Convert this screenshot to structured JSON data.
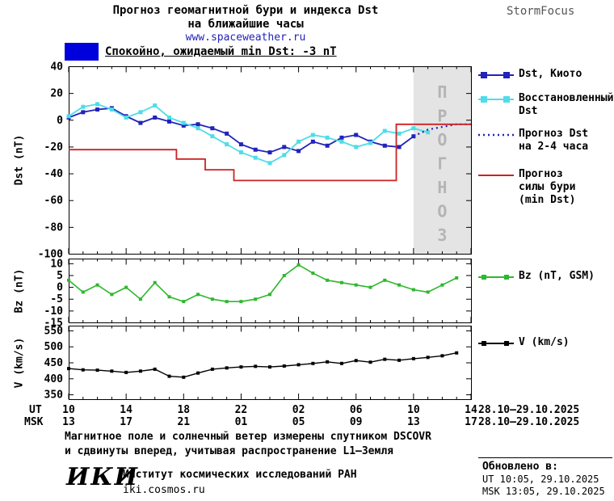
{
  "header": {
    "title_line1": "Прогноз геомагнитной бури и индекса Dst",
    "title_line2": "на ближайшие часы",
    "site": "www.spaceweather.ru",
    "brand": "StormFocus"
  },
  "status": {
    "label": "Спокойно, ожидаемый min Dst: -3 nT",
    "swatch_color": "#0000dd"
  },
  "legends": {
    "dst_kyoto": {
      "label": "Dst, Киото",
      "color": "#2222bb"
    },
    "restored": {
      "label": "Восстановленный\nDst",
      "color": "#4fdce8"
    },
    "forecast_dst": {
      "label": "Прогноз Dst\nна 2-4 часа",
      "color": "#2222bb"
    },
    "storm_force": {
      "label": "Прогноз\nсилы бури\n(min Dst)",
      "color": "#cc2222"
    },
    "bz": {
      "label": "Bz (nT, GSM)",
      "color": "#2db82d"
    },
    "v": {
      "label": "V (km/s)",
      "color": "#000000"
    }
  },
  "axis": {
    "ut_label": "UT",
    "msk_label": "MSK",
    "ut_ticks": [
      "10",
      "14",
      "18",
      "22",
      "02",
      "06",
      "10",
      "14"
    ],
    "msk_ticks": [
      "13",
      "17",
      "21",
      "01",
      "05",
      "09",
      "13",
      "17"
    ],
    "ut_daterange": "28.10–29.10.2025",
    "msk_daterange": "28.10–29.10.2025"
  },
  "footer": {
    "note_line1": "Магнитное поле и солнечный ветер измерены спутником DSCOVR",
    "note_line2": "и сдвинуты вперед, учитывая распространение L1–Земля",
    "updated_label": "Обновлено в:",
    "updated_ut": "UT  10:05, 29.10.2025",
    "updated_msk": "MSK 13:05, 29.10.2025",
    "iki_logo": "ИКИ",
    "iki_name": "Институт космических исследований РАН",
    "iki_site": "iki.cosmos.ru"
  },
  "chart_data": [
    {
      "type": "line",
      "title": "Прогноз геомагнитной бури и индекса Dst на ближайшие часы",
      "ylabel": "Dst (nT)",
      "ylim": [
        -100,
        40
      ],
      "yticks": [
        40,
        20,
        0,
        -20,
        -40,
        -60,
        -80,
        -100
      ],
      "xlim": [
        0,
        28
      ],
      "xticks_hours": [
        0,
        4,
        8,
        12,
        16,
        20,
        24,
        28
      ],
      "x_axis_note": "hours from 28.10.2025 10:00 UT; ticks labeled in UT and MSK",
      "forecast_band": {
        "x_start": 24,
        "x_end": 28,
        "label": "ПРОГНОЗ"
      },
      "series": [
        {
          "name": "Dst, Киото",
          "color": "#2222bb",
          "marker": true,
          "msize": 5,
          "width": 1.8,
          "x": [
            0,
            1,
            2,
            3,
            4,
            5,
            6,
            7,
            8,
            9,
            10,
            11,
            12,
            13,
            14,
            15,
            16,
            17,
            18,
            19,
            20,
            21,
            22,
            23,
            24
          ],
          "values": [
            2,
            6,
            8,
            9,
            3,
            -2,
            2,
            -1,
            -4,
            -3,
            -6,
            -10,
            -18,
            -22,
            -24,
            -20,
            -23,
            -16,
            -19,
            -13,
            -11,
            -16,
            -19,
            -20,
            -12
          ]
        },
        {
          "name": "Восстановленный Dst",
          "color": "#4fdce8",
          "marker": true,
          "msize": 5,
          "width": 1.8,
          "x": [
            0,
            1,
            2,
            3,
            4,
            5,
            6,
            7,
            8,
            9,
            10,
            11,
            12,
            13,
            14,
            15,
            16,
            17,
            18,
            19,
            20,
            21,
            22,
            23,
            24,
            25
          ],
          "values": [
            3,
            10,
            12,
            8,
            2,
            6,
            11,
            2,
            -2,
            -6,
            -12,
            -18,
            -24,
            -28,
            -32,
            -26,
            -16,
            -11,
            -13,
            -16,
            -20,
            -17,
            -8,
            -10,
            -6,
            -9
          ]
        },
        {
          "name": "Прогноз Dst на 2-4 часа",
          "color": "#2222bb",
          "dash": true,
          "width": 2.2,
          "x": [
            24,
            25,
            26,
            27,
            28
          ],
          "values": [
            -12,
            -7,
            -5,
            -3,
            -3
          ]
        },
        {
          "name": "Прогноз силы бури (min Dst)",
          "color": "#cc2222",
          "width": 1.8,
          "x": [
            0,
            7.5,
            7.5,
            9.5,
            9.5,
            11.5,
            11.5,
            22.8,
            22.8,
            28
          ],
          "values": [
            -22,
            -22,
            -29,
            -29,
            -37,
            -37,
            -45,
            -45,
            -3,
            -3
          ]
        }
      ]
    },
    {
      "type": "line",
      "ylabel": "Bz (nT)",
      "ylim": [
        -15,
        12
      ],
      "yticks": [
        10,
        5,
        0,
        -5,
        -10,
        -15
      ],
      "xlim": [
        0,
        28
      ],
      "series": [
        {
          "name": "Bz (nT, GSM)",
          "color": "#2db82d",
          "marker": true,
          "msize": 4,
          "width": 1.6,
          "x": [
            0,
            1,
            2,
            3,
            4,
            5,
            6,
            7,
            8,
            9,
            10,
            11,
            12,
            13,
            14,
            15,
            16,
            17,
            18,
            19,
            20,
            21,
            22,
            23,
            24,
            25,
            26,
            27
          ],
          "values": [
            3,
            -2,
            1,
            -3,
            0,
            -5,
            2,
            -4,
            -6,
            -3,
            -5,
            -6,
            -6,
            -5,
            -3,
            5,
            9.5,
            6,
            3,
            2,
            1,
            0,
            3,
            1,
            -1,
            -2,
            1,
            4
          ]
        }
      ]
    },
    {
      "type": "line",
      "ylabel": "V (km/s)",
      "ylim": [
        335,
        565
      ],
      "yticks": [
        550,
        500,
        450,
        400,
        350
      ],
      "xlim": [
        0,
        28
      ],
      "series": [
        {
          "name": "V (km/s)",
          "color": "#000000",
          "marker": true,
          "msize": 4,
          "width": 1.4,
          "x": [
            0,
            1,
            2,
            3,
            4,
            5,
            6,
            7,
            8,
            9,
            10,
            11,
            12,
            13,
            14,
            15,
            16,
            17,
            18,
            19,
            20,
            21,
            22,
            23,
            24,
            25,
            26,
            27
          ],
          "values": [
            432,
            428,
            427,
            424,
            420,
            424,
            430,
            408,
            405,
            418,
            430,
            434,
            437,
            439,
            437,
            440,
            444,
            448,
            453,
            448,
            457,
            452,
            461,
            458,
            463,
            467,
            472,
            481
          ]
        }
      ]
    }
  ]
}
